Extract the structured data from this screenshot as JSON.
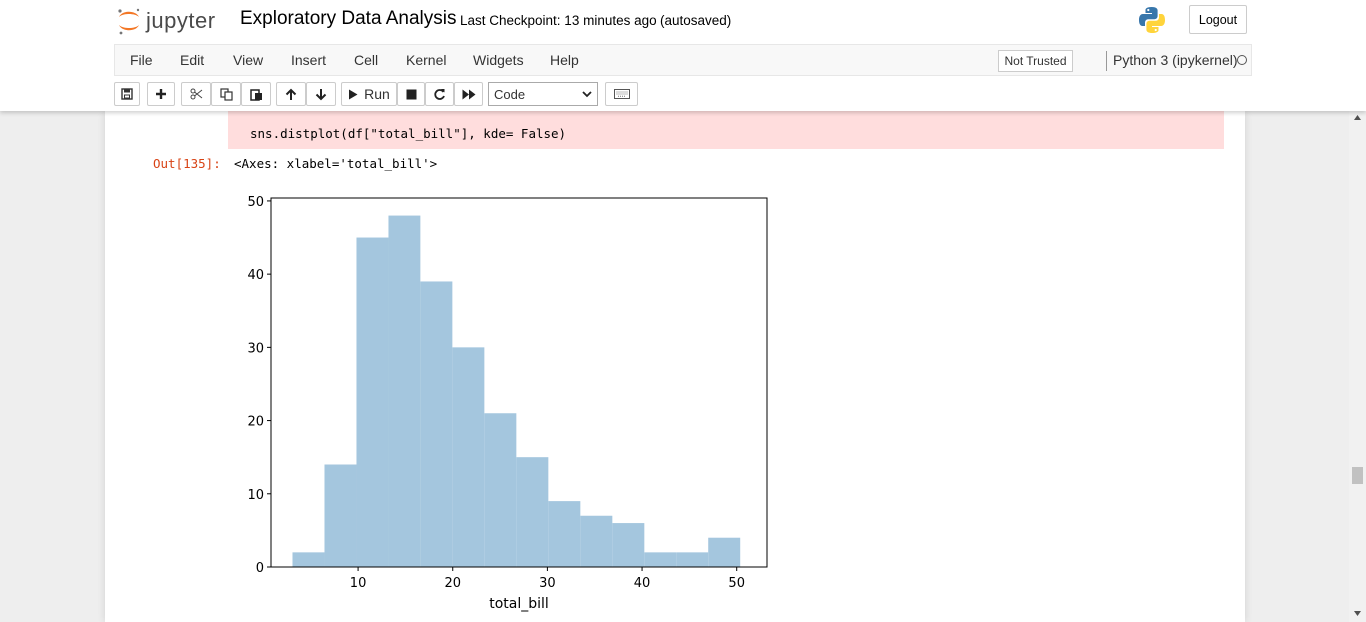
{
  "header": {
    "logo_text": "jupyter",
    "notebook_title": "Exploratory Data Analysis",
    "checkpoint": "Last Checkpoint: 13 minutes ago",
    "autosave": "(autosaved)",
    "logout_label": "Logout"
  },
  "menu": {
    "items": [
      "File",
      "Edit",
      "View",
      "Insert",
      "Cell",
      "Kernel",
      "Widgets",
      "Help"
    ],
    "trust_label": "Not Trusted",
    "kernel_name": "Python 3 (ipykernel)"
  },
  "toolbar": {
    "run_label": "Run",
    "cell_type": "Code",
    "icons": [
      "save-icon",
      "plus-icon",
      "cut-icon",
      "copy-icon",
      "paste-icon",
      "arrow-up-icon",
      "arrow-down-icon",
      "play-icon",
      "stop-icon",
      "restart-icon",
      "fast-forward-icon",
      "keyboard-icon"
    ]
  },
  "cell": {
    "code": "sns.distplot(df[\"total_bill\"], kde= False)",
    "out_prompt": "Out[135]:",
    "out_text": "<Axes: xlabel='total_bill'>"
  },
  "chart_data": {
    "type": "bar",
    "bin_edges": [
      3.07,
      6.45,
      9.83,
      13.21,
      16.58,
      19.96,
      23.34,
      26.72,
      30.1,
      33.48,
      36.86,
      40.24,
      43.62,
      46.99,
      50.37
    ],
    "values": [
      2,
      14,
      45,
      48,
      39,
      30,
      21,
      15,
      9,
      7,
      6,
      2,
      2,
      4
    ],
    "xlabel": "total_bill",
    "ylabel": "",
    "xticks": [
      10,
      20,
      30,
      40,
      50
    ],
    "yticks": [
      0,
      10,
      20,
      30,
      40,
      50
    ],
    "xlim": [
      0.8,
      53.2
    ],
    "ylim": [
      0,
      50.4
    ],
    "bar_color": "#a4c6de",
    "grid": false
  }
}
